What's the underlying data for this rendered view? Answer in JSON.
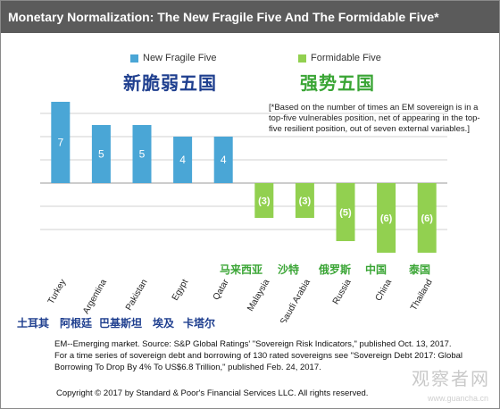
{
  "title": "Monetary Normalization: The New Fragile Five And The Formidable Five*",
  "legend": {
    "fragile_label": "New Fragile Five",
    "formidable_label": "Formidable Five"
  },
  "headings": {
    "fragile_cn": "新脆弱五国",
    "formidable_cn": "强势五国"
  },
  "note": "[*Based on the number of times an EM sovereign is in a top-five vulnerables position, net of appearing in the top-five resilient position, out of seven external variables.]",
  "chinese_labels": {
    "fragile": [
      "土耳其",
      "阿根廷",
      "巴基斯坦",
      "埃及",
      "卡塔尔"
    ],
    "formidable": [
      "马来西亚",
      "沙特",
      "俄罗斯",
      "中国",
      "泰国"
    ]
  },
  "footnote": "EM--Emerging market. Source: S&P Global Ratings' \"Sovereign Risk Indicators,\" published Oct. 13, 2017. For a time series of sovereign debt and borrowing of 130 rated sovereigns see \"Sovereign Debt 2017: Global Borrowing To Drop By 4% To US$6.8 Trillion,\" published Feb. 24, 2017.",
  "copyright": "Copyright © 2017 by Standard & Poor's Financial Services LLC. All rights reserved.",
  "watermark": "观察者网",
  "watermark_sub": "www.guancha.cn",
  "colors": {
    "title_bar": "#5b5b5b",
    "fragile": "#4aa6d6",
    "formidable": "#92d050",
    "fragile_heading": "#1f3f8f",
    "formidable_heading": "#3aa535",
    "grid": "#d0d0d0"
  },
  "chart_data": {
    "type": "bar",
    "categories": [
      "Turkey",
      "Argentina",
      "Pakistan",
      "Egypt",
      "Qatar",
      "Malaysia",
      "Saudi Arabia",
      "Russia",
      "China",
      "Thailand"
    ],
    "series": [
      {
        "name": "New Fragile Five",
        "values": [
          7,
          5,
          5,
          4,
          4,
          null,
          null,
          null,
          null,
          null
        ]
      },
      {
        "name": "Formidable Five",
        "values": [
          null,
          null,
          null,
          null,
          null,
          -3,
          -3,
          -5,
          -6,
          -6
        ]
      }
    ],
    "data_labels": [
      "7",
      "5",
      "5",
      "4",
      "4",
      "(3)",
      "(3)",
      "(5)",
      "(6)",
      "(6)"
    ],
    "ylim": [
      -6,
      7
    ],
    "grid": true,
    "legend_position": "top"
  }
}
